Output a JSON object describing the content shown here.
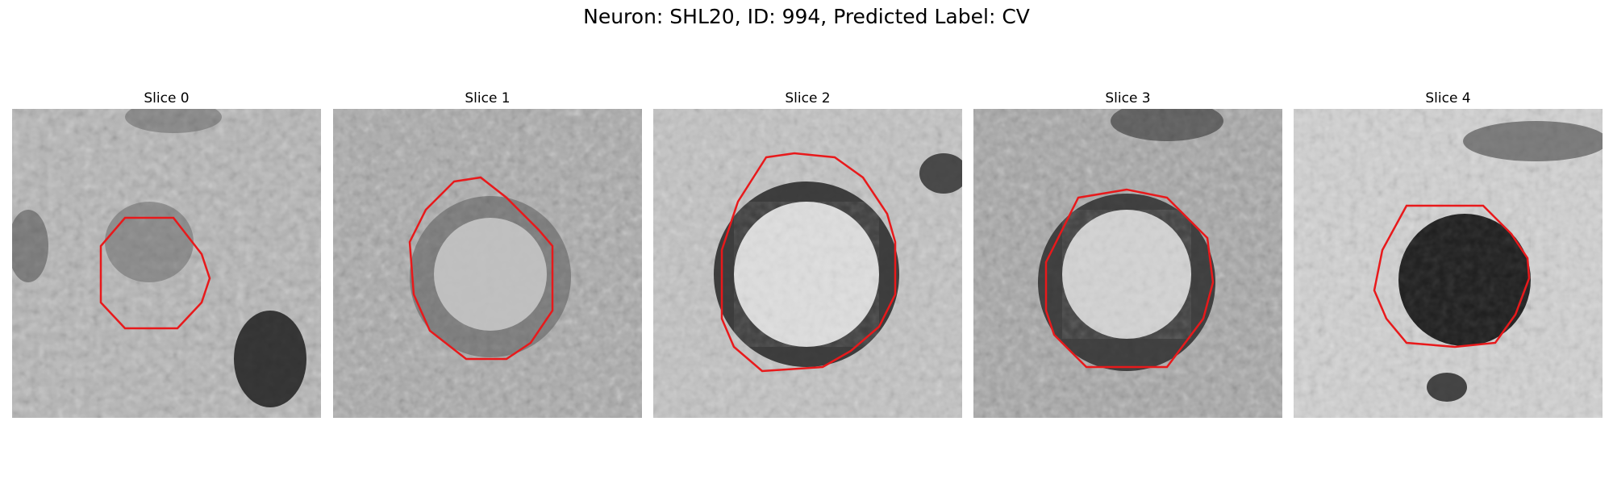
{
  "figure": {
    "title": "Neuron: SHL20, ID: 994, Predicted Label: CV"
  },
  "panels": [
    {
      "title": "Slice 0",
      "contour_color": "#e8191b"
    },
    {
      "title": "Slice 1",
      "contour_color": "#e8191b"
    },
    {
      "title": "Slice 2",
      "contour_color": "#e8191b"
    },
    {
      "title": "Slice 3",
      "contour_color": "#e8191b"
    },
    {
      "title": "Slice 4",
      "contour_color": "#e8191b"
    }
  ]
}
